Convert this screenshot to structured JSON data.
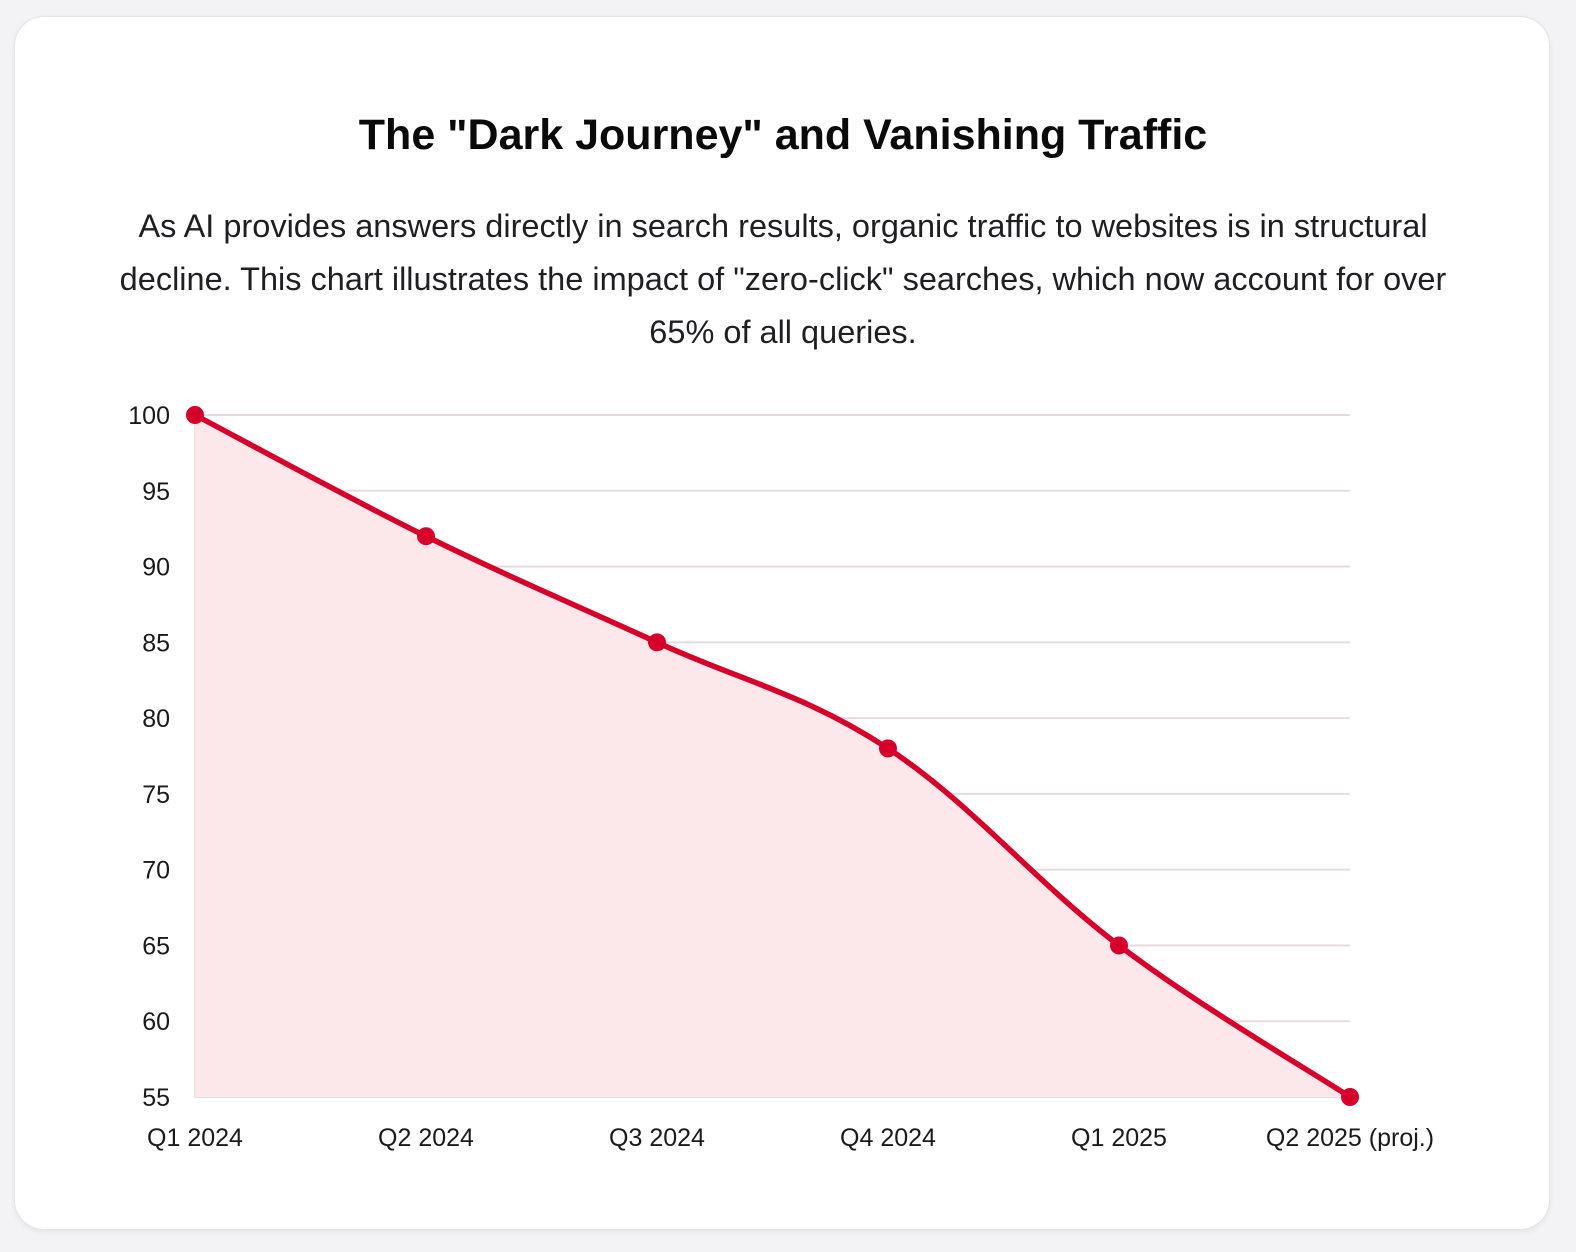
{
  "title": "The \"Dark Journey\" and Vanishing Traffic",
  "subtitle": "As AI provides answers directly in search results, organic traffic to websites is in structural decline. This chart illustrates the impact of \"zero-click\" searches, which now account for over 65% of all queries.",
  "colors": {
    "line": "#d6002b",
    "fill": "#fce8ea",
    "grid": "#e6dcdf"
  },
  "chart_data": {
    "type": "area",
    "categories": [
      "Q1 2024",
      "Q2 2024",
      "Q3 2024",
      "Q4 2024",
      "Q1 2025",
      "Q2 2025 (proj.)"
    ],
    "series": [
      {
        "values": [
          100,
          92,
          85,
          78,
          65,
          55
        ]
      }
    ],
    "yticks": [
      100,
      95,
      90,
      85,
      80,
      75,
      70,
      65,
      60,
      55
    ],
    "ylim": [
      55,
      100
    ],
    "grid": true,
    "legend": "none"
  }
}
